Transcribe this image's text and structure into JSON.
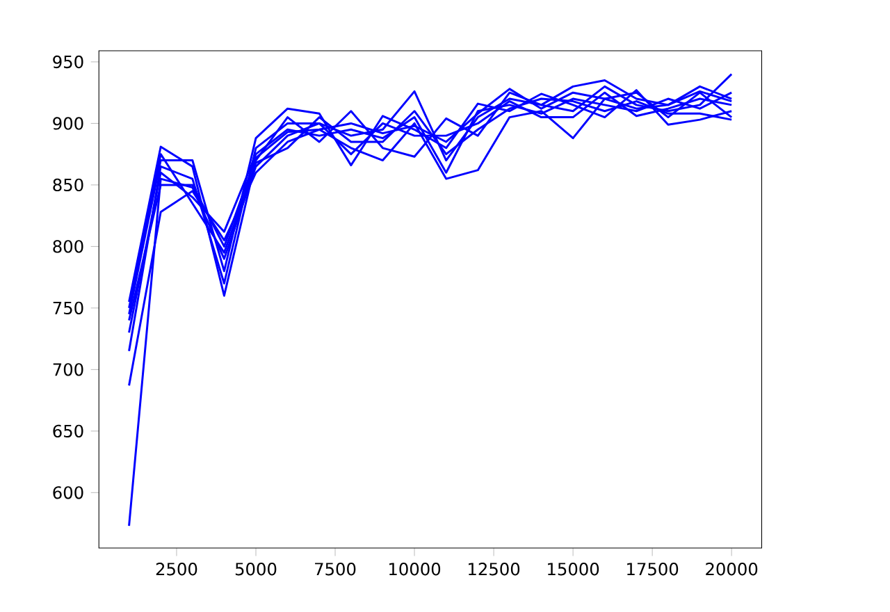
{
  "chart_data": {
    "type": "line",
    "x": [
      1000,
      2000,
      3000,
      4000,
      5000,
      6000,
      7000,
      8000,
      9000,
      10000,
      11000,
      12000,
      13000,
      14000,
      15000,
      16000,
      17000,
      18000,
      19000,
      20000
    ],
    "xlim": [
      50,
      20950
    ],
    "ylim": [
      555,
      959
    ],
    "xticks": [
      2500,
      5000,
      7500,
      10000,
      12500,
      15000,
      17500,
      20000
    ],
    "yticks": [
      600,
      650,
      700,
      750,
      800,
      850,
      900,
      950
    ],
    "series": [
      {
        "color": "#0000ff",
        "values": [
          573,
          855,
          848,
          790,
          865,
          890,
          900,
          890,
          895,
          926,
          870,
          905,
          920,
          915,
          910,
          930,
          915,
          910,
          915,
          940
        ]
      },
      {
        "color": "#0000ff",
        "values": [
          687,
          828,
          845,
          805,
          860,
          885,
          895,
          880,
          870,
          900,
          855,
          862,
          905,
          910,
          888,
          920,
          925,
          905,
          925,
          905
        ]
      },
      {
        "color": "#0000ff",
        "values": [
          755,
          881,
          865,
          760,
          870,
          905,
          885,
          910,
          880,
          873,
          904,
          890,
          925,
          915,
          930,
          935,
          920,
          915,
          930,
          920
        ]
      },
      {
        "color": "#0000ff",
        "values": [
          745,
          870,
          870,
          780,
          888,
          912,
          908,
          866,
          906,
          895,
          880,
          916,
          910,
          924,
          915,
          905,
          927,
          899,
          903,
          910
        ]
      },
      {
        "color": "#0000ff",
        "values": [
          730,
          860,
          840,
          812,
          875,
          895,
          890,
          895,
          888,
          905,
          860,
          910,
          915,
          908,
          920,
          915,
          910,
          920,
          912,
          925
        ]
      },
      {
        "color": "#0000ff",
        "values": [
          715,
          865,
          855,
          770,
          880,
          900,
          900,
          875,
          900,
          890,
          890,
          900,
          918,
          905,
          905,
          925,
          906,
          912,
          920,
          915
        ]
      },
      {
        "color": "#0000ff",
        "values": [
          750,
          875,
          835,
          795,
          868,
          880,
          905,
          885,
          885,
          910,
          875,
          895,
          912,
          920,
          918,
          910,
          918,
          908,
          908,
          903
        ]
      },
      {
        "color": "#0000ff",
        "values": [
          740,
          850,
          850,
          800,
          872,
          893,
          895,
          900,
          892,
          898,
          885,
          908,
          928,
          912,
          925,
          920,
          912,
          915,
          926,
          918
        ]
      }
    ]
  }
}
